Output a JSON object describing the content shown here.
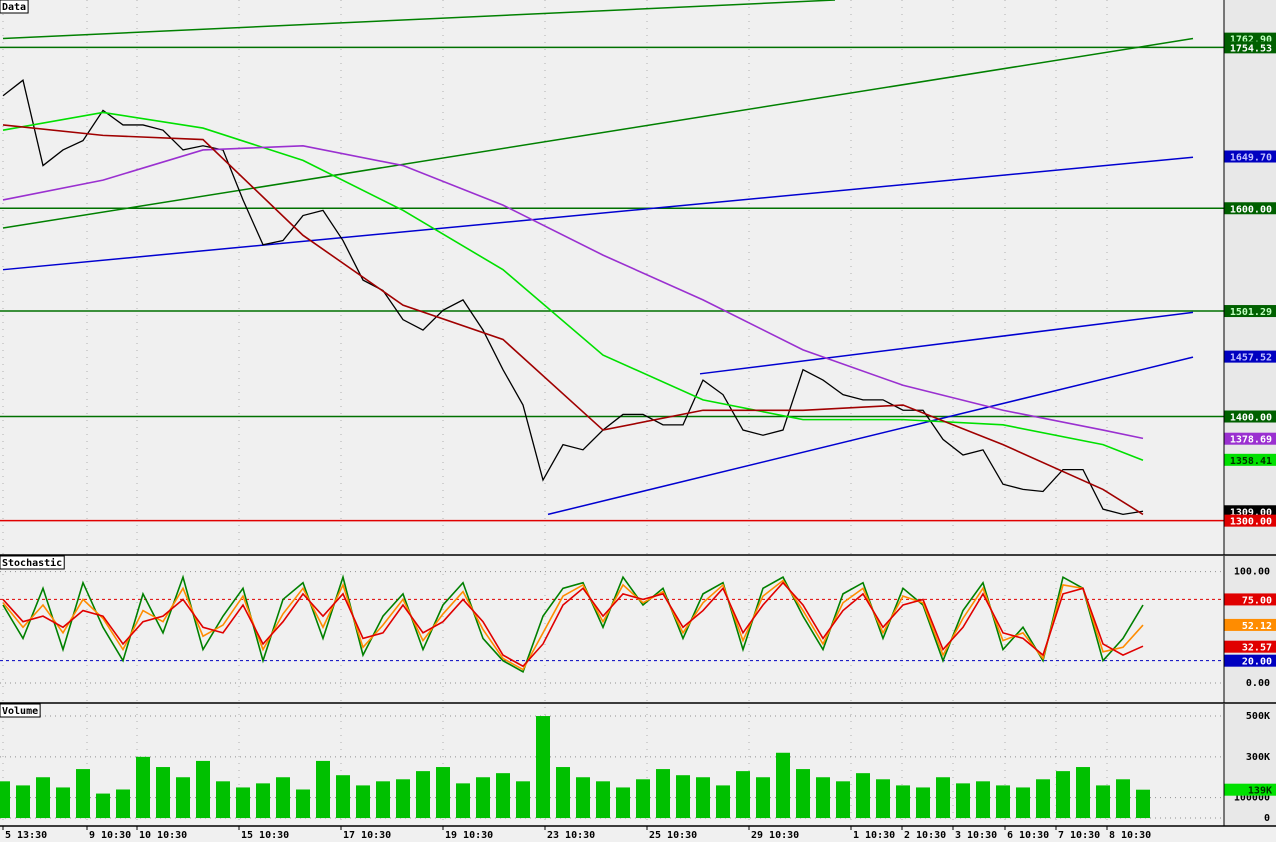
{
  "chart_data": [
    {
      "type": "line",
      "title": "Data",
      "ylim": [
        1267,
        1800
      ],
      "series": [
        {
          "color": "#000000",
          "values": [
            1708,
            1723,
            1641,
            1656,
            1665,
            1694,
            1680,
            1680,
            1675,
            1656,
            1660,
            1656,
            1608,
            1565,
            1569,
            1593,
            1598,
            1569,
            1531,
            1521,
            1493,
            1483,
            1502,
            1512,
            1483,
            1445,
            1411,
            1339,
            1373,
            1368,
            1387,
            1402,
            1402,
            1392,
            1392,
            1435,
            1421,
            1387,
            1382,
            1387,
            1445,
            1435,
            1421,
            1416,
            1416,
            1406,
            1406,
            1378,
            1363,
            1368,
            1335,
            1330,
            1328,
            1349,
            1349,
            1311,
            1306,
            1309
          ]
        },
        {
          "color": "#00e000",
          "x": [
            0,
            5,
            10,
            15,
            20,
            25,
            30,
            35,
            40,
            45,
            50,
            55,
            57
          ],
          "values": [
            1675,
            1692,
            1677,
            1646,
            1598,
            1541,
            1459,
            1416,
            1397,
            1397,
            1392,
            1373,
            1358
          ]
        },
        {
          "color": "#9a30d0",
          "x": [
            0,
            5,
            10,
            15,
            20,
            25,
            30,
            35,
            40,
            45,
            50,
            55,
            57
          ],
          "values": [
            1608,
            1627,
            1656,
            1660,
            1641,
            1603,
            1555,
            1512,
            1464,
            1430,
            1406,
            1387,
            1379
          ]
        },
        {
          "color": "#a00000",
          "x": [
            0,
            5,
            10,
            15,
            20,
            25,
            30,
            35,
            40,
            45,
            50,
            55,
            57
          ],
          "values": [
            1680,
            1670,
            1666,
            1574,
            1507,
            1474,
            1387,
            1406,
            1406,
            1411,
            1373,
            1330,
            1306
          ]
        }
      ],
      "hlines": [
        {
          "value": 1754.53,
          "color": "#007000"
        },
        {
          "value": 1600,
          "color": "#007000"
        },
        {
          "value": 1501.29,
          "color": "#007000"
        },
        {
          "value": 1400,
          "color": "#007000"
        },
        {
          "value": 1300,
          "color": "#e00000"
        }
      ],
      "trendlines": [
        {
          "color": "#008000",
          "x": [
            0,
            59.5
          ],
          "values": [
            1581,
            1763
          ]
        },
        {
          "color": "#008000",
          "x": [
            0,
            41.6
          ],
          "values": [
            1763,
            1800
          ]
        },
        {
          "color": "#0000d0",
          "x": [
            0,
            59.5
          ],
          "values": [
            1541,
            1649
          ]
        },
        {
          "color": "#0000d0",
          "x": [
            27.25,
            59.5
          ],
          "values": [
            1306,
            1457
          ]
        },
        {
          "color": "#0000d0",
          "x": [
            34.85,
            59.5
          ],
          "values": [
            1441,
            1500
          ]
        }
      ],
      "tags": [
        {
          "value": 1762.9,
          "label": "1762.90",
          "color": "#006000",
          "text_color": "#c0ffc0"
        },
        {
          "value": 1754.53,
          "label": "1754.53",
          "color": "#006000",
          "text_color": "#ffffff"
        },
        {
          "value": 1649.7,
          "label": "1649.70",
          "color": "#0000c0",
          "text_color": "#c0c0ff"
        },
        {
          "value": 1600,
          "label": "1600.00",
          "color": "#006000",
          "text_color": "#ffffff"
        },
        {
          "value": 1501.29,
          "label": "1501.29",
          "color": "#006000",
          "text_color": "#c0ffc0"
        },
        {
          "value": 1457.52,
          "label": "1457.52",
          "color": "#0000c0",
          "text_color": "#c0c0ff"
        },
        {
          "value": 1400,
          "label": "1400.00",
          "color": "#006000",
          "text_color": "#ffffff"
        },
        {
          "value": 1378.69,
          "label": "1378.69",
          "color": "#9a30d0",
          "text_color": "#ffffff"
        },
        {
          "value": 1358.41,
          "label": "1358.41",
          "color": "#00e000",
          "text_color": "#003000"
        },
        {
          "value": 1309,
          "label": "1309.00",
          "color": "#000000",
          "text_color": "#ffffff"
        },
        {
          "value": 1300,
          "label": "1300.00",
          "color": "#e00000",
          "text_color": "#ffffff"
        }
      ]
    },
    {
      "type": "line",
      "title": "Stochastic",
      "ylim": [
        -18,
        114
      ],
      "yticks": [
        {
          "value": 100,
          "label": "100.00"
        },
        {
          "value": 0,
          "label": "0.00"
        }
      ],
      "series": [
        {
          "color": "#008000",
          "values": [
            70,
            40,
            85,
            30,
            90,
            50,
            20,
            80,
            45,
            95,
            30,
            60,
            85,
            20,
            75,
            90,
            40,
            95,
            25,
            60,
            80,
            30,
            70,
            90,
            40,
            20,
            10,
            60,
            85,
            90,
            50,
            95,
            70,
            85,
            40,
            80,
            90,
            30,
            85,
            95,
            60,
            30,
            80,
            90,
            40,
            85,
            70,
            20,
            65,
            90,
            30,
            50,
            20,
            95,
            85,
            20,
            40,
            70
          ]
        },
        {
          "color": "#ff8c00",
          "values": [
            72,
            50,
            70,
            45,
            75,
            58,
            30,
            65,
            55,
            85,
            42,
            52,
            78,
            30,
            62,
            85,
            50,
            88,
            32,
            52,
            75,
            38,
            62,
            82,
            48,
            22,
            12,
            45,
            78,
            88,
            55,
            88,
            72,
            82,
            45,
            72,
            88,
            38,
            78,
            92,
            65,
            35,
            72,
            85,
            45,
            78,
            72,
            25,
            58,
            85,
            38,
            45,
            22,
            88,
            85,
            28,
            32,
            52
          ]
        },
        {
          "color": "#e00000",
          "values": [
            75,
            55,
            60,
            50,
            65,
            60,
            35,
            55,
            60,
            75,
            50,
            45,
            70,
            35,
            55,
            80,
            60,
            80,
            40,
            45,
            70,
            45,
            55,
            75,
            55,
            25,
            15,
            35,
            70,
            85,
            60,
            80,
            75,
            80,
            50,
            65,
            85,
            45,
            70,
            90,
            70,
            40,
            65,
            80,
            50,
            70,
            75,
            30,
            50,
            80,
            45,
            40,
            25,
            80,
            85,
            35,
            25,
            33
          ]
        }
      ],
      "hlines": [
        {
          "value": 75,
          "color": "#e00000",
          "dashed": true
        },
        {
          "value": 20,
          "color": "#0000c0",
          "dashed": true
        }
      ],
      "tags": [
        {
          "value": 75,
          "label": "75.00",
          "color": "#e00000",
          "text_color": "#ffffff"
        },
        {
          "value": 52.12,
          "label": "52.12",
          "color": "#ff8c00",
          "text_color": "#ffffff"
        },
        {
          "value": 32.57,
          "label": "32.57",
          "color": "#e00000",
          "text_color": "#ffffff"
        },
        {
          "value": 20,
          "label": "20.00",
          "color": "#0000c0",
          "text_color": "#ffffff"
        }
      ]
    },
    {
      "type": "bar",
      "title": "Volume",
      "ylim": [
        -39000,
        559000
      ],
      "color": "#00c000",
      "yticks": [
        {
          "value": 500000,
          "label": "500K"
        },
        {
          "value": 300000,
          "label": "300K"
        },
        100000,
        0
      ],
      "values": [
        180000,
        160000,
        200000,
        150000,
        240000,
        120000,
        140000,
        300000,
        250000,
        200000,
        280000,
        180000,
        150000,
        170000,
        200000,
        140000,
        280000,
        210000,
        160000,
        180000,
        190000,
        230000,
        250000,
        170000,
        200000,
        220000,
        180000,
        500000,
        250000,
        200000,
        180000,
        150000,
        190000,
        240000,
        210000,
        200000,
        160000,
        230000,
        200000,
        320000,
        240000,
        200000,
        180000,
        220000,
        190000,
        160000,
        150000,
        200000,
        170000,
        180000,
        160000,
        150000,
        190000,
        230000,
        250000,
        160000,
        190000,
        139000
      ],
      "tags": [
        {
          "value": 139000,
          "label": "139K",
          "color": "#00e000",
          "text_color": "#003000"
        }
      ],
      "xticks": [
        {
          "value": 0,
          "label": "5 13:30"
        },
        {
          "value": 4.2,
          "label": "9 10:30"
        },
        {
          "value": 6.7,
          "label": "10 10:30"
        },
        {
          "value": 11.8,
          "label": "15 10:30"
        },
        {
          "value": 16.9,
          "label": "17 10:30"
        },
        {
          "value": 22,
          "label": "19 10:30"
        },
        {
          "value": 27.1,
          "label": "23 10:30"
        },
        {
          "value": 32.2,
          "label": "25 10:30"
        },
        {
          "value": 37.3,
          "label": "29 10:30"
        },
        {
          "value": 42.4,
          "label": "1 10:30"
        },
        {
          "value": 44.95,
          "label": "2 10:30"
        },
        {
          "value": 47.5,
          "label": "3 10:30"
        },
        {
          "value": 50.1,
          "label": "6 10:30"
        },
        {
          "value": 52.65,
          "label": "7 10:30"
        },
        {
          "value": 55.2,
          "label": "8 10:30"
        }
      ]
    }
  ]
}
